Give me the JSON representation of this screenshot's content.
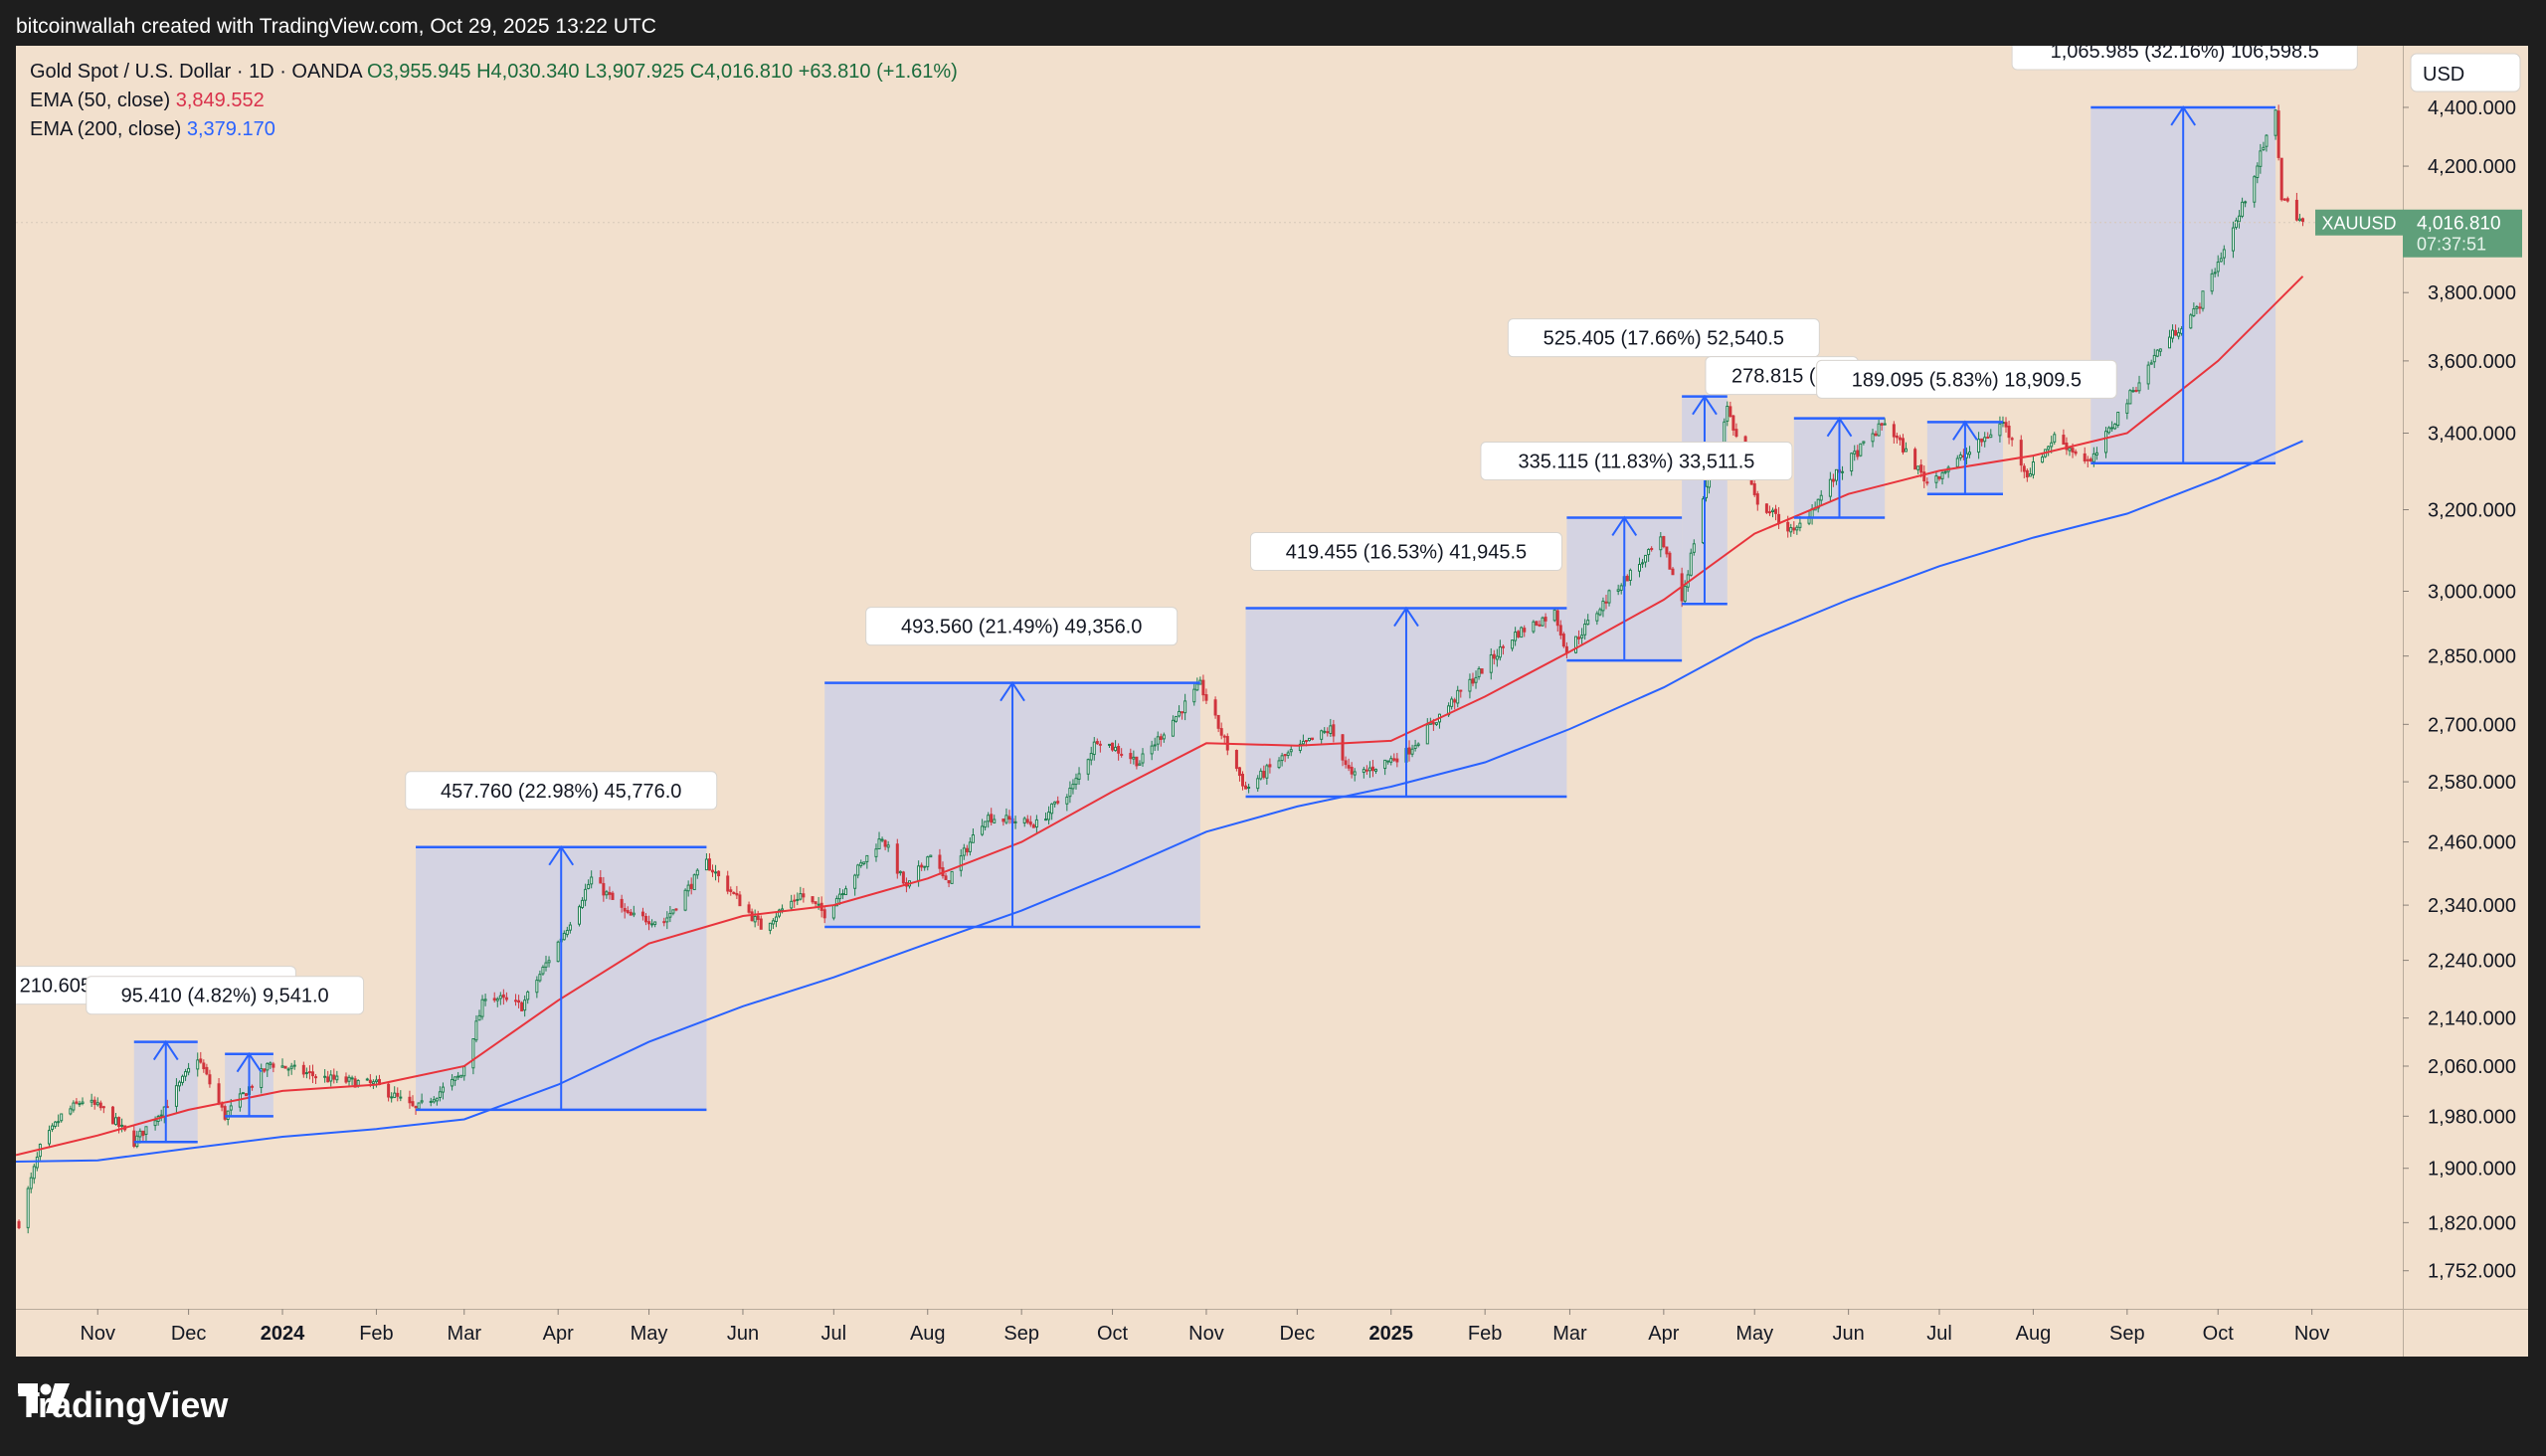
{
  "header": {
    "text": "bitcoinwallah created with TradingView.com, Oct 29, 2025 13:22 UTC"
  },
  "legend": {
    "symbol": "Gold Spot / U.S. Dollar · 1D · OANDA",
    "ohlc": "O3,955.945  H4,030.340  L3,907.925  C4,016.810",
    "change": "+63.810 (+1.61%)",
    "ema50_label": "EMA (50, close)",
    "ema50_value": "3,849.552",
    "ema200_label": "EMA (200, close)",
    "ema200_value": "3,379.170"
  },
  "price_tag": {
    "symbol": "XAUUSD",
    "price": "4,016.810",
    "countdown": "07:37:51",
    "value": 4016.81
  },
  "brand": {
    "name": "TradingView"
  },
  "colors": {
    "bg": "#f2e0cd",
    "up": "#1e7f4f",
    "down": "#d0343d",
    "ema50": "#e8343c",
    "ema200": "#2962ff",
    "range": "#c9cfe8",
    "accent": "#2962ff",
    "price_tag": "#5f9f7a"
  },
  "chart_data": {
    "type": "candlestick",
    "title": "Gold Spot / U.S. Dollar",
    "interval": "1D",
    "currency": "USD",
    "y_scale": "log",
    "ylim": [
      1700,
      4620
    ],
    "y_ticks": [
      1752,
      1820,
      1900,
      1980,
      2060,
      2140,
      2240,
      2340,
      2460,
      2580,
      2700,
      2850,
      3000,
      3200,
      3400,
      3600,
      3800,
      4000,
      4200,
      4400
    ],
    "y_tick_labels": [
      "1,752.000",
      "1,820.000",
      "1,900.000",
      "1,980.000",
      "2,060.000",
      "2,140.000",
      "2,240.000",
      "2,340.000",
      "2,460.000",
      "2,580.000",
      "2,700.000",
      "2,850.000",
      "3,000.000",
      "3,200.000",
      "3,400.000",
      "3,600.000",
      "3,800.000",
      "4,000.000",
      "4,200.000",
      "4,400.000"
    ],
    "x_range": [
      "2023-10-05",
      "2025-12-01"
    ],
    "x_ticks": [
      {
        "label": "Nov",
        "date": "2023-11-01"
      },
      {
        "label": "Dec",
        "date": "2023-12-01"
      },
      {
        "label": "2024",
        "date": "2024-01-01",
        "bold": true
      },
      {
        "label": "Feb",
        "date": "2024-02-01"
      },
      {
        "label": "Mar",
        "date": "2024-03-01"
      },
      {
        "label": "Apr",
        "date": "2024-04-01"
      },
      {
        "label": "May",
        "date": "2024-05-01"
      },
      {
        "label": "Jun",
        "date": "2024-06-01"
      },
      {
        "label": "Jul",
        "date": "2024-07-01"
      },
      {
        "label": "Aug",
        "date": "2024-08-01"
      },
      {
        "label": "Sep",
        "date": "2024-09-01"
      },
      {
        "label": "Oct",
        "date": "2024-10-01"
      },
      {
        "label": "Nov",
        "date": "2024-11-01"
      },
      {
        "label": "Dec",
        "date": "2024-12-01"
      },
      {
        "label": "2025",
        "date": "2025-01-01",
        "bold": true
      },
      {
        "label": "Feb",
        "date": "2025-02-01"
      },
      {
        "label": "Mar",
        "date": "2025-03-01"
      },
      {
        "label": "Apr",
        "date": "2025-04-01"
      },
      {
        "label": "May",
        "date": "2025-05-01"
      },
      {
        "label": "Jun",
        "date": "2025-06-01"
      },
      {
        "label": "Jul",
        "date": "2025-07-01"
      },
      {
        "label": "Aug",
        "date": "2025-08-01"
      },
      {
        "label": "Sep",
        "date": "2025-09-01"
      },
      {
        "label": "Oct",
        "date": "2025-10-01"
      },
      {
        "label": "Nov",
        "date": "2025-11-01"
      }
    ],
    "price_path": [
      [
        "2023-10-06",
        1820
      ],
      [
        "2023-10-13",
        1930
      ],
      [
        "2023-10-20",
        1980
      ],
      [
        "2023-10-27",
        2005
      ],
      [
        "2023-11-03",
        1990
      ],
      [
        "2023-11-13",
        1940
      ],
      [
        "2023-11-24",
        2000
      ],
      [
        "2023-12-04",
        2075
      ],
      [
        "2023-12-13",
        1980
      ],
      [
        "2023-12-28",
        2065
      ],
      [
        "2024-01-15",
        2040
      ],
      [
        "2024-02-01",
        2030
      ],
      [
        "2024-02-14",
        1990
      ],
      [
        "2024-02-29",
        2045
      ],
      [
        "2024-03-08",
        2180
      ],
      [
        "2024-03-20",
        2160
      ],
      [
        "2024-04-04",
        2300
      ],
      [
        "2024-04-12",
        2390
      ],
      [
        "2024-04-24",
        2320
      ],
      [
        "2024-05-06",
        2310
      ],
      [
        "2024-05-20",
        2420
      ],
      [
        "2024-06-07",
        2300
      ],
      [
        "2024-06-20",
        2360
      ],
      [
        "2024-06-28",
        2325
      ],
      [
        "2024-07-17",
        2470
      ],
      [
        "2024-07-25",
        2370
      ],
      [
        "2024-08-02",
        2440
      ],
      [
        "2024-08-07",
        2380
      ],
      [
        "2024-08-20",
        2510
      ],
      [
        "2024-09-06",
        2495
      ],
      [
        "2024-09-18",
        2570
      ],
      [
        "2024-09-26",
        2670
      ],
      [
        "2024-10-10",
        2620
      ],
      [
        "2024-10-30",
        2785
      ],
      [
        "2024-11-14",
        2565
      ],
      [
        "2024-11-25",
        2625
      ],
      [
        "2024-12-12",
        2690
      ],
      [
        "2024-12-19",
        2590
      ],
      [
        "2025-01-06",
        2640
      ],
      [
        "2025-01-24",
        2770
      ],
      [
        "2025-02-11",
        2900
      ],
      [
        "2025-02-24",
        2950
      ],
      [
        "2025-02-28",
        2860
      ],
      [
        "2025-03-14",
        2990
      ],
      [
        "2025-03-31",
        3120
      ],
      [
        "2025-04-07",
        2980
      ],
      [
        "2025-04-14",
        3230
      ],
      [
        "2025-04-22",
        3470
      ],
      [
        "2025-05-01",
        3230
      ],
      [
        "2025-05-14",
        3140
      ],
      [
        "2025-05-28",
        3290
      ],
      [
        "2025-06-13",
        3430
      ],
      [
        "2025-06-27",
        3270
      ],
      [
        "2025-07-11",
        3350
      ],
      [
        "2025-07-22",
        3430
      ],
      [
        "2025-07-30",
        3290
      ],
      [
        "2025-08-08",
        3390
      ],
      [
        "2025-08-20",
        3320
      ],
      [
        "2025-08-29",
        3450
      ],
      [
        "2025-09-12",
        3640
      ],
      [
        "2025-09-24",
        3750
      ],
      [
        "2025-10-08",
        4040
      ],
      [
        "2025-10-20",
        4380
      ],
      [
        "2025-10-22",
        4100
      ],
      [
        "2025-10-29",
        4016.8
      ]
    ],
    "ema50_path": [
      [
        "2023-10-05",
        1920
      ],
      [
        "2023-11-01",
        1950
      ],
      [
        "2023-12-01",
        1990
      ],
      [
        "2024-01-01",
        2020
      ],
      [
        "2024-02-01",
        2030
      ],
      [
        "2024-03-01",
        2060
      ],
      [
        "2024-04-01",
        2170
      ],
      [
        "2024-05-01",
        2270
      ],
      [
        "2024-06-01",
        2320
      ],
      [
        "2024-07-01",
        2340
      ],
      [
        "2024-08-01",
        2390
      ],
      [
        "2024-09-01",
        2460
      ],
      [
        "2024-10-01",
        2560
      ],
      [
        "2024-11-01",
        2660
      ],
      [
        "2024-12-01",
        2655
      ],
      [
        "2025-01-01",
        2665
      ],
      [
        "2025-02-01",
        2760
      ],
      [
        "2025-03-01",
        2860
      ],
      [
        "2025-04-01",
        2980
      ],
      [
        "2025-05-01",
        3140
      ],
      [
        "2025-06-01",
        3240
      ],
      [
        "2025-07-01",
        3300
      ],
      [
        "2025-08-01",
        3340
      ],
      [
        "2025-09-01",
        3400
      ],
      [
        "2025-10-01",
        3600
      ],
      [
        "2025-10-29",
        3849.552
      ]
    ],
    "ema200_path": [
      [
        "2023-10-05",
        1910
      ],
      [
        "2023-11-01",
        1912
      ],
      [
        "2023-12-01",
        1930
      ],
      [
        "2024-01-01",
        1948
      ],
      [
        "2024-02-01",
        1960
      ],
      [
        "2024-03-01",
        1975
      ],
      [
        "2024-04-01",
        2030
      ],
      [
        "2024-05-01",
        2100
      ],
      [
        "2024-06-01",
        2160
      ],
      [
        "2024-07-01",
        2210
      ],
      [
        "2024-08-01",
        2270
      ],
      [
        "2024-09-01",
        2330
      ],
      [
        "2024-10-01",
        2400
      ],
      [
        "2024-11-01",
        2480
      ],
      [
        "2024-12-01",
        2530
      ],
      [
        "2025-01-01",
        2570
      ],
      [
        "2025-02-01",
        2620
      ],
      [
        "2025-03-01",
        2690
      ],
      [
        "2025-04-01",
        2780
      ],
      [
        "2025-05-01",
        2890
      ],
      [
        "2025-06-01",
        2980
      ],
      [
        "2025-07-01",
        3060
      ],
      [
        "2025-08-01",
        3130
      ],
      [
        "2025-09-01",
        3190
      ],
      [
        "2025-10-01",
        3280
      ],
      [
        "2025-10-29",
        3379.17
      ]
    ],
    "annotations": [
      {
        "label": "210.605 (10.86%) 21,060.5",
        "x1": "2023-11-13",
        "x2": "2023-12-04",
        "y1": 1940,
        "y2": 2100,
        "label_x": "2023-11-15",
        "label_pos": "top"
      },
      {
        "label": "95.410 (4.82%) 9,541.0",
        "x1": "2023-12-13",
        "x2": "2023-12-29",
        "y1": 1980,
        "y2": 2080,
        "label_x": "2023-12-13",
        "label_pos": "top2"
      },
      {
        "label": "457.760 (22.98%) 45,776.0",
        "x1": "2024-02-14",
        "x2": "2024-05-20",
        "y1": 1990,
        "y2": 2450,
        "label_x": "2024-04-02",
        "label_pos": "top"
      },
      {
        "label": "493.560 (21.49%) 49,356.0",
        "x1": "2024-06-28",
        "x2": "2024-10-30",
        "y1": 2300,
        "y2": 2790,
        "label_x": "2024-09-01",
        "label_pos": "top"
      },
      {
        "label": "419.455 (16.53%) 41,945.5",
        "x1": "2024-11-14",
        "x2": "2025-02-28",
        "y1": 2550,
        "y2": 2960,
        "label_x": "2025-01-06",
        "label_pos": "top"
      },
      {
        "label": "335.115 (11.83%) 33,511.5",
        "x1": "2025-02-28",
        "x2": "2025-04-07",
        "y1": 2840,
        "y2": 3180,
        "label_x": "2025-03-23",
        "label_pos": "top"
      },
      {
        "label": "525.405 (17.66%) 52,540.5",
        "x1": "2025-04-07",
        "x2": "2025-04-22",
        "y1": 2970,
        "y2": 3500,
        "label_x": "2025-04-01",
        "label_pos": "top2"
      },
      {
        "label": "278.815 (8.",
        "x1": "2025-05-14",
        "x2": "2025-06-13",
        "y1": 3180,
        "y2": 3440,
        "label_x": "2025-05-10",
        "label_pos": "top3"
      },
      {
        "label": "189.095 (5.83%) 18,909.5",
        "x1": "2025-06-27",
        "x2": "2025-07-22",
        "y1": 3240,
        "y2": 3430,
        "label_x": "2025-07-10",
        "label_pos": "top3"
      },
      {
        "label": "1,065.985 (32.16%) 106,598.5",
        "x1": "2025-08-20",
        "x2": "2025-10-20",
        "y1": 3320,
        "y2": 4400,
        "label_x": "2025-09-20",
        "label_pos": "top"
      }
    ]
  }
}
